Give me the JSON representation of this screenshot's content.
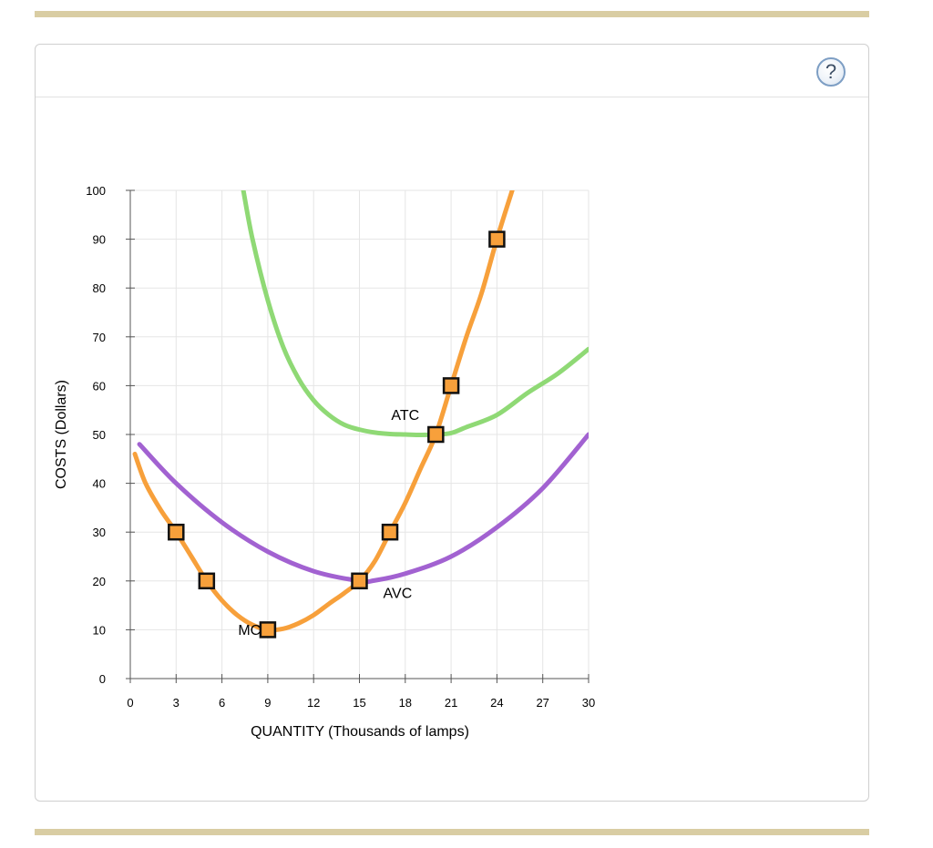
{
  "help_button": {
    "label": "?",
    "icon": "question-mark-icon"
  },
  "colors": {
    "mc": "#f7a03b",
    "atc": "#8fd975",
    "avc": "#a262d1",
    "marker_fill": "#f7a03b",
    "marker_stroke": "#111111",
    "rule": "#d9cda3",
    "grid": "#e5e5e5"
  },
  "chart_data": {
    "type": "line",
    "xlabel": "QUANTITY (Thousands of lamps)",
    "ylabel": "COSTS (Dollars)",
    "xlim": [
      0,
      30
    ],
    "ylim": [
      0,
      100
    ],
    "xticks": [
      0,
      3,
      6,
      9,
      12,
      15,
      18,
      21,
      24,
      27,
      30
    ],
    "yticks": [
      0,
      10,
      20,
      30,
      40,
      50,
      60,
      70,
      80,
      90,
      100
    ],
    "grid": true,
    "series": [
      {
        "name": "ATC",
        "color": "#8fd975",
        "points": [
          [
            7.4,
            100
          ],
          [
            8,
            90
          ],
          [
            9,
            77.5
          ],
          [
            10,
            68
          ],
          [
            11,
            61.5
          ],
          [
            12,
            57
          ],
          [
            13,
            54
          ],
          [
            14,
            52
          ],
          [
            15,
            51
          ],
          [
            16,
            50.4
          ],
          [
            17,
            50.1
          ],
          [
            18,
            50
          ],
          [
            19,
            49.9
          ],
          [
            20,
            50
          ],
          [
            21,
            50.3
          ],
          [
            22,
            51.5
          ],
          [
            24,
            54
          ],
          [
            26,
            58.5
          ],
          [
            28,
            62.5
          ],
          [
            30,
            67.5
          ]
        ]
      },
      {
        "name": "AVC",
        "color": "#a262d1",
        "points": [
          [
            0.6,
            48
          ],
          [
            3,
            40
          ],
          [
            6,
            32
          ],
          [
            9,
            26
          ],
          [
            12,
            22
          ],
          [
            15,
            20
          ],
          [
            16,
            20.1
          ],
          [
            18,
            21.5
          ],
          [
            21,
            25
          ],
          [
            24,
            31
          ],
          [
            27,
            39
          ],
          [
            30,
            50
          ]
        ]
      },
      {
        "name": "MC",
        "color": "#f7a03b",
        "points": [
          [
            0.3,
            46
          ],
          [
            1,
            40
          ],
          [
            2,
            34.5
          ],
          [
            3,
            30
          ],
          [
            4,
            25
          ],
          [
            5,
            20
          ],
          [
            6,
            16
          ],
          [
            7,
            13
          ],
          [
            8,
            11
          ],
          [
            9,
            10
          ],
          [
            10,
            10.2
          ],
          [
            11,
            11.3
          ],
          [
            12,
            13
          ],
          [
            13,
            15.3
          ],
          [
            14,
            17.5
          ],
          [
            15,
            20
          ],
          [
            16,
            24
          ],
          [
            17,
            30
          ],
          [
            18,
            36
          ],
          [
            19,
            43
          ],
          [
            20,
            50
          ],
          [
            21,
            60
          ],
          [
            22,
            70
          ],
          [
            23,
            79
          ],
          [
            24,
            90
          ],
          [
            25,
            100
          ]
        ]
      }
    ],
    "markers": [
      [
        3,
        30
      ],
      [
        5,
        20
      ],
      [
        9,
        10
      ],
      [
        15,
        20
      ],
      [
        17,
        30
      ],
      [
        20,
        50
      ],
      [
        21,
        60
      ],
      [
        24,
        90
      ]
    ],
    "labels": [
      {
        "text": "ATC",
        "x": 18,
        "y": 53
      },
      {
        "text": "AVC",
        "x": 17.5,
        "y": 16.5
      },
      {
        "text": "MC",
        "x": 7.8,
        "y": 9
      }
    ]
  }
}
